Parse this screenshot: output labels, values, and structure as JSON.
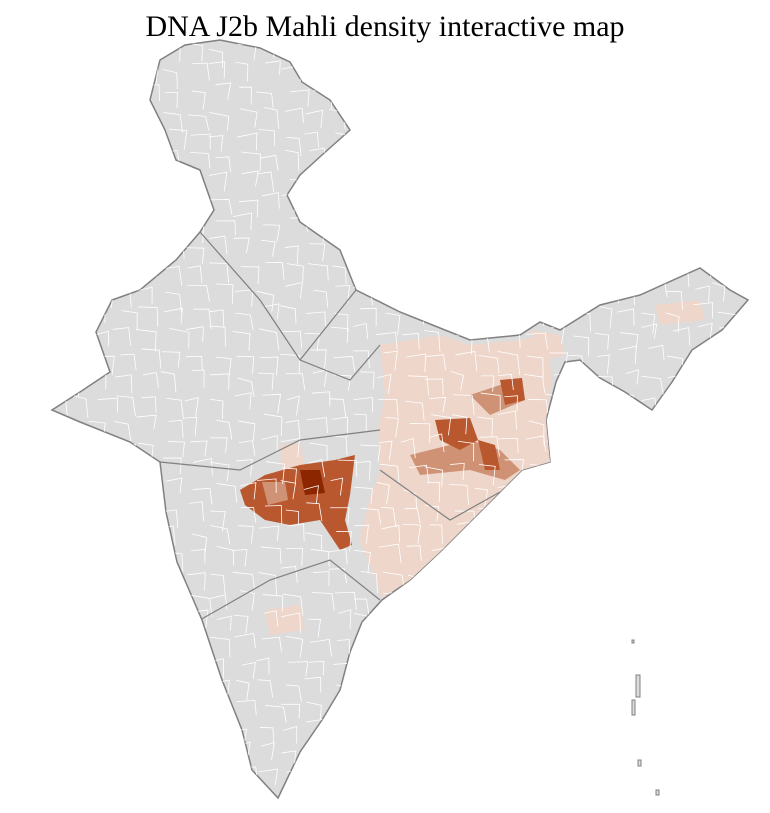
{
  "title": "DNA J2b Mahli density interactive map",
  "colors": {
    "no_data": "#dcdcdc",
    "border": "#808080",
    "district_lines": "#ffffff",
    "density_low": "#eed6ca",
    "density_mid": "#cf9274",
    "density_high": "#b9572f",
    "density_max": "#8b2600"
  }
}
